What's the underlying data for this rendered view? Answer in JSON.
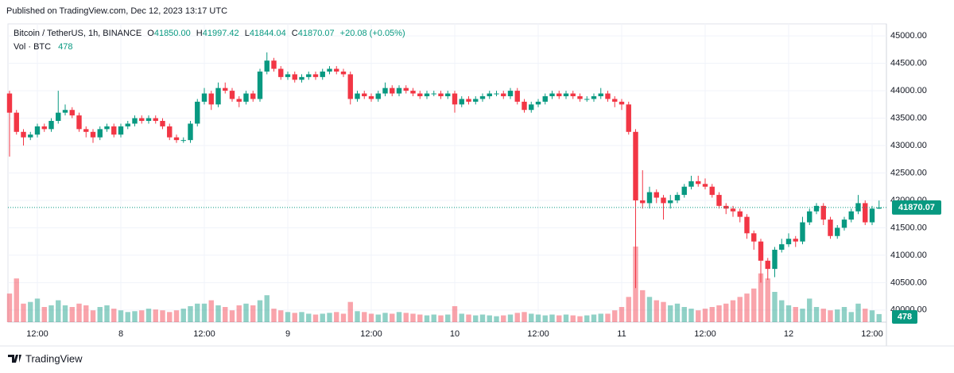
{
  "header": {
    "published": "Published on TradingView.com, Dec 12, 2023 13:17 UTC"
  },
  "legend": {
    "symbol": "Bitcoin / TetherUS, 1h, BINANCE",
    "open_label": "O",
    "open": "41850.00",
    "high_label": "H",
    "high": "41997.42",
    "low_label": "L",
    "low": "41844.04",
    "close_label": "C",
    "close": "41870.07",
    "change": "+20.08 (+0.05%)",
    "volume_label": "Vol · BTC"
  },
  "footer": {
    "brand": "TradingView"
  },
  "chart_data": {
    "type": "candlestick",
    "up_color": "#089981",
    "down_color": "#f23645",
    "grid": true,
    "ylim": [
      39780,
      45220
    ],
    "yticks": [
      {
        "value": 40000,
        "label": "40000.00"
      },
      {
        "value": 40500,
        "label": "40500.00"
      },
      {
        "value": 41000,
        "label": "41000.00"
      },
      {
        "value": 41500,
        "label": "41500.00"
      },
      {
        "value": 42000,
        "label": "42000.00"
      },
      {
        "value": 42500,
        "label": "42500.00"
      },
      {
        "value": 43000,
        "label": "43000.00"
      },
      {
        "value": 43500,
        "label": "43500.00"
      },
      {
        "value": 44000,
        "label": "44000.00"
      },
      {
        "value": 44500,
        "label": "44500.00"
      },
      {
        "value": 45000,
        "label": "45000.00"
      }
    ],
    "xticks": [
      {
        "value": 4,
        "label": "12:00"
      },
      {
        "value": 16,
        "label": "8"
      },
      {
        "value": 28,
        "label": "12:00"
      },
      {
        "value": 40,
        "label": "9"
      },
      {
        "value": 52,
        "label": "12:00"
      },
      {
        "value": 64,
        "label": "10"
      },
      {
        "value": 76,
        "label": "12:00"
      },
      {
        "value": 88,
        "label": "11"
      },
      {
        "value": 100,
        "label": "12:00"
      },
      {
        "value": 112,
        "label": "12"
      },
      {
        "value": 124,
        "label": "12:00"
      }
    ],
    "open": [
      43950,
      43600,
      43250,
      43150,
      43200,
      43350,
      43300,
      43450,
      43600,
      43650,
      43550,
      43300,
      43250,
      43150,
      43300,
      43350,
      43200,
      43350,
      43400,
      43500,
      43450,
      43500,
      43450,
      43350,
      43150,
      43100,
      43100,
      43400,
      43800,
      43950,
      43750,
      44050,
      44000,
      43850,
      43800,
      43950,
      43850,
      44350,
      44550,
      44400,
      44250,
      44300,
      44200,
      44250,
      44300,
      44250,
      44350,
      44400,
      44350,
      44300,
      43850,
      43950,
      43900,
      43850,
      43950,
      44050,
      43950,
      44050,
      44000,
      43950,
      43900,
      43950,
      43950,
      43900,
      43950,
      43750,
      43850,
      43800,
      43850,
      43900,
      43950,
      43950,
      43900,
      44000,
      43800,
      43650,
      43750,
      43800,
      43900,
      43950,
      43900,
      43950,
      43900,
      43850,
      43850,
      43900,
      43950,
      43850,
      43800,
      43750,
      43250,
      42000,
      41950,
      42150,
      42050,
      41950,
      42000,
      42100,
      42250,
      42350,
      42300,
      42250,
      42100,
      41900,
      41850,
      41800,
      41700,
      41400,
      41250,
      40900,
      40750,
      41100,
      41200,
      41300,
      41250,
      41600,
      41800,
      41900,
      41650,
      41350,
      41500,
      41650,
      41800,
      41950,
      41600,
      41850
    ],
    "high": [
      44000,
      43650,
      43300,
      43250,
      43400,
      43400,
      43500,
      44000,
      43750,
      43700,
      43600,
      43350,
      43300,
      43350,
      43400,
      43400,
      43400,
      43450,
      43550,
      43550,
      43550,
      43550,
      43500,
      43400,
      43200,
      43150,
      43450,
      43850,
      44050,
      44000,
      44150,
      44150,
      44050,
      43900,
      44000,
      44000,
      44400,
      44700,
      44600,
      44450,
      44350,
      44350,
      44300,
      44350,
      44350,
      44400,
      44450,
      44450,
      44400,
      44350,
      44000,
      44000,
      43950,
      44000,
      44150,
      44100,
      44100,
      44100,
      44050,
      44000,
      44000,
      44000,
      44000,
      44000,
      44000,
      43900,
      43900,
      43900,
      43950,
      44000,
      44000,
      44000,
      44050,
      44050,
      43850,
      43800,
      43850,
      43950,
      44000,
      44000,
      44000,
      44000,
      43950,
      43900,
      43950,
      44050,
      44000,
      43900,
      43850,
      43800,
      43300,
      42550,
      42250,
      42200,
      42100,
      42100,
      42150,
      42300,
      42450,
      42450,
      42400,
      42300,
      42150,
      41950,
      41900,
      41850,
      41750,
      41450,
      41300,
      40950,
      41150,
      41300,
      41400,
      41350,
      41700,
      41850,
      41950,
      41950,
      41700,
      41550,
      41700,
      41850,
      42100,
      42000,
      41900,
      41997.42
    ],
    "low": [
      42800,
      43200,
      43000,
      43100,
      43150,
      43250,
      43250,
      43400,
      43550,
      43500,
      43250,
      43150,
      43050,
      43100,
      43250,
      43150,
      43150,
      43300,
      43350,
      43400,
      43400,
      43400,
      43300,
      43100,
      43050,
      43050,
      43050,
      43350,
      43750,
      43650,
      43700,
      43950,
      43800,
      43700,
      43750,
      43800,
      43800,
      44300,
      44350,
      44200,
      44200,
      44150,
      44150,
      44200,
      44200,
      44200,
      44300,
      44300,
      44250,
      43750,
      43800,
      43850,
      43800,
      43800,
      43900,
      43900,
      43900,
      43950,
      43900,
      43850,
      43850,
      43900,
      43850,
      43850,
      43600,
      43700,
      43750,
      43750,
      43800,
      43850,
      43900,
      43850,
      43850,
      43750,
      43600,
      43600,
      43700,
      43750,
      43850,
      43850,
      43850,
      43850,
      43800,
      43800,
      43800,
      43850,
      43800,
      43700,
      43650,
      43200,
      40400,
      41850,
      41850,
      41950,
      41650,
      41850,
      41950,
      42050,
      42200,
      42250,
      42200,
      42050,
      41850,
      41750,
      41700,
      41600,
      41300,
      41100,
      40500,
      40550,
      40600,
      41050,
      41150,
      41150,
      41200,
      41550,
      41750,
      41550,
      41300,
      41300,
      41450,
      41600,
      41750,
      41550,
      41550,
      41844.04
    ],
    "close": [
      43600,
      43250,
      43150,
      43200,
      43350,
      43300,
      43450,
      43600,
      43650,
      43550,
      43300,
      43250,
      43150,
      43300,
      43350,
      43200,
      43350,
      43400,
      43500,
      43450,
      43500,
      43450,
      43350,
      43150,
      43100,
      43100,
      43400,
      43800,
      43950,
      43750,
      44050,
      44000,
      43850,
      43800,
      43950,
      43850,
      44350,
      44550,
      44400,
      44250,
      44300,
      44200,
      44250,
      44300,
      44250,
      44350,
      44400,
      44350,
      44300,
      43850,
      43950,
      43900,
      43850,
      43950,
      44050,
      43950,
      44050,
      44000,
      43950,
      43900,
      43950,
      43950,
      43900,
      43950,
      43750,
      43850,
      43800,
      43850,
      43900,
      43950,
      43950,
      43900,
      44000,
      43800,
      43650,
      43750,
      43800,
      43900,
      43950,
      43900,
      43950,
      43900,
      43850,
      43850,
      43900,
      43950,
      43850,
      43800,
      43750,
      43250,
      42000,
      41950,
      42150,
      42050,
      41950,
      42000,
      42100,
      42250,
      42350,
      42300,
      42250,
      42100,
      41900,
      41850,
      41800,
      41700,
      41400,
      41250,
      40900,
      40750,
      41100,
      41200,
      41300,
      41250,
      41600,
      41800,
      41900,
      41650,
      41350,
      41500,
      41650,
      41800,
      41950,
      41600,
      41850,
      41870.07
    ],
    "volume": [
      1700,
      2600,
      1100,
      1200,
      1400,
      900,
      1000,
      1300,
      1000,
      900,
      1100,
      1000,
      700,
      900,
      1000,
      800,
      700,
      600,
      650,
      700,
      800,
      750,
      700,
      600,
      700,
      800,
      950,
      1100,
      1100,
      1300,
      1000,
      900,
      700,
      1000,
      1100,
      1000,
      1300,
      1600,
      800,
      700,
      600,
      550,
      600,
      500,
      450,
      500,
      550,
      600,
      500,
      1200,
      650,
      600,
      500,
      450,
      550,
      500,
      600,
      550,
      500,
      450,
      400,
      450,
      400,
      450,
      950,
      500,
      450,
      400,
      450,
      400,
      350,
      400,
      450,
      550,
      600,
      500,
      450,
      400,
      450,
      400,
      450,
      400,
      350,
      400,
      450,
      500,
      500,
      700,
      900,
      1500,
      4500,
      1900,
      1500,
      1300,
      1200,
      1000,
      1100,
      900,
      800,
      700,
      800,
      900,
      1000,
      1100,
      1300,
      1500,
      1700,
      2000,
      2900,
      2600,
      1800,
      1300,
      1000,
      900,
      800,
      1400,
      900,
      800,
      700,
      750,
      900,
      600,
      1100,
      800,
      700,
      478
    ]
  }
}
